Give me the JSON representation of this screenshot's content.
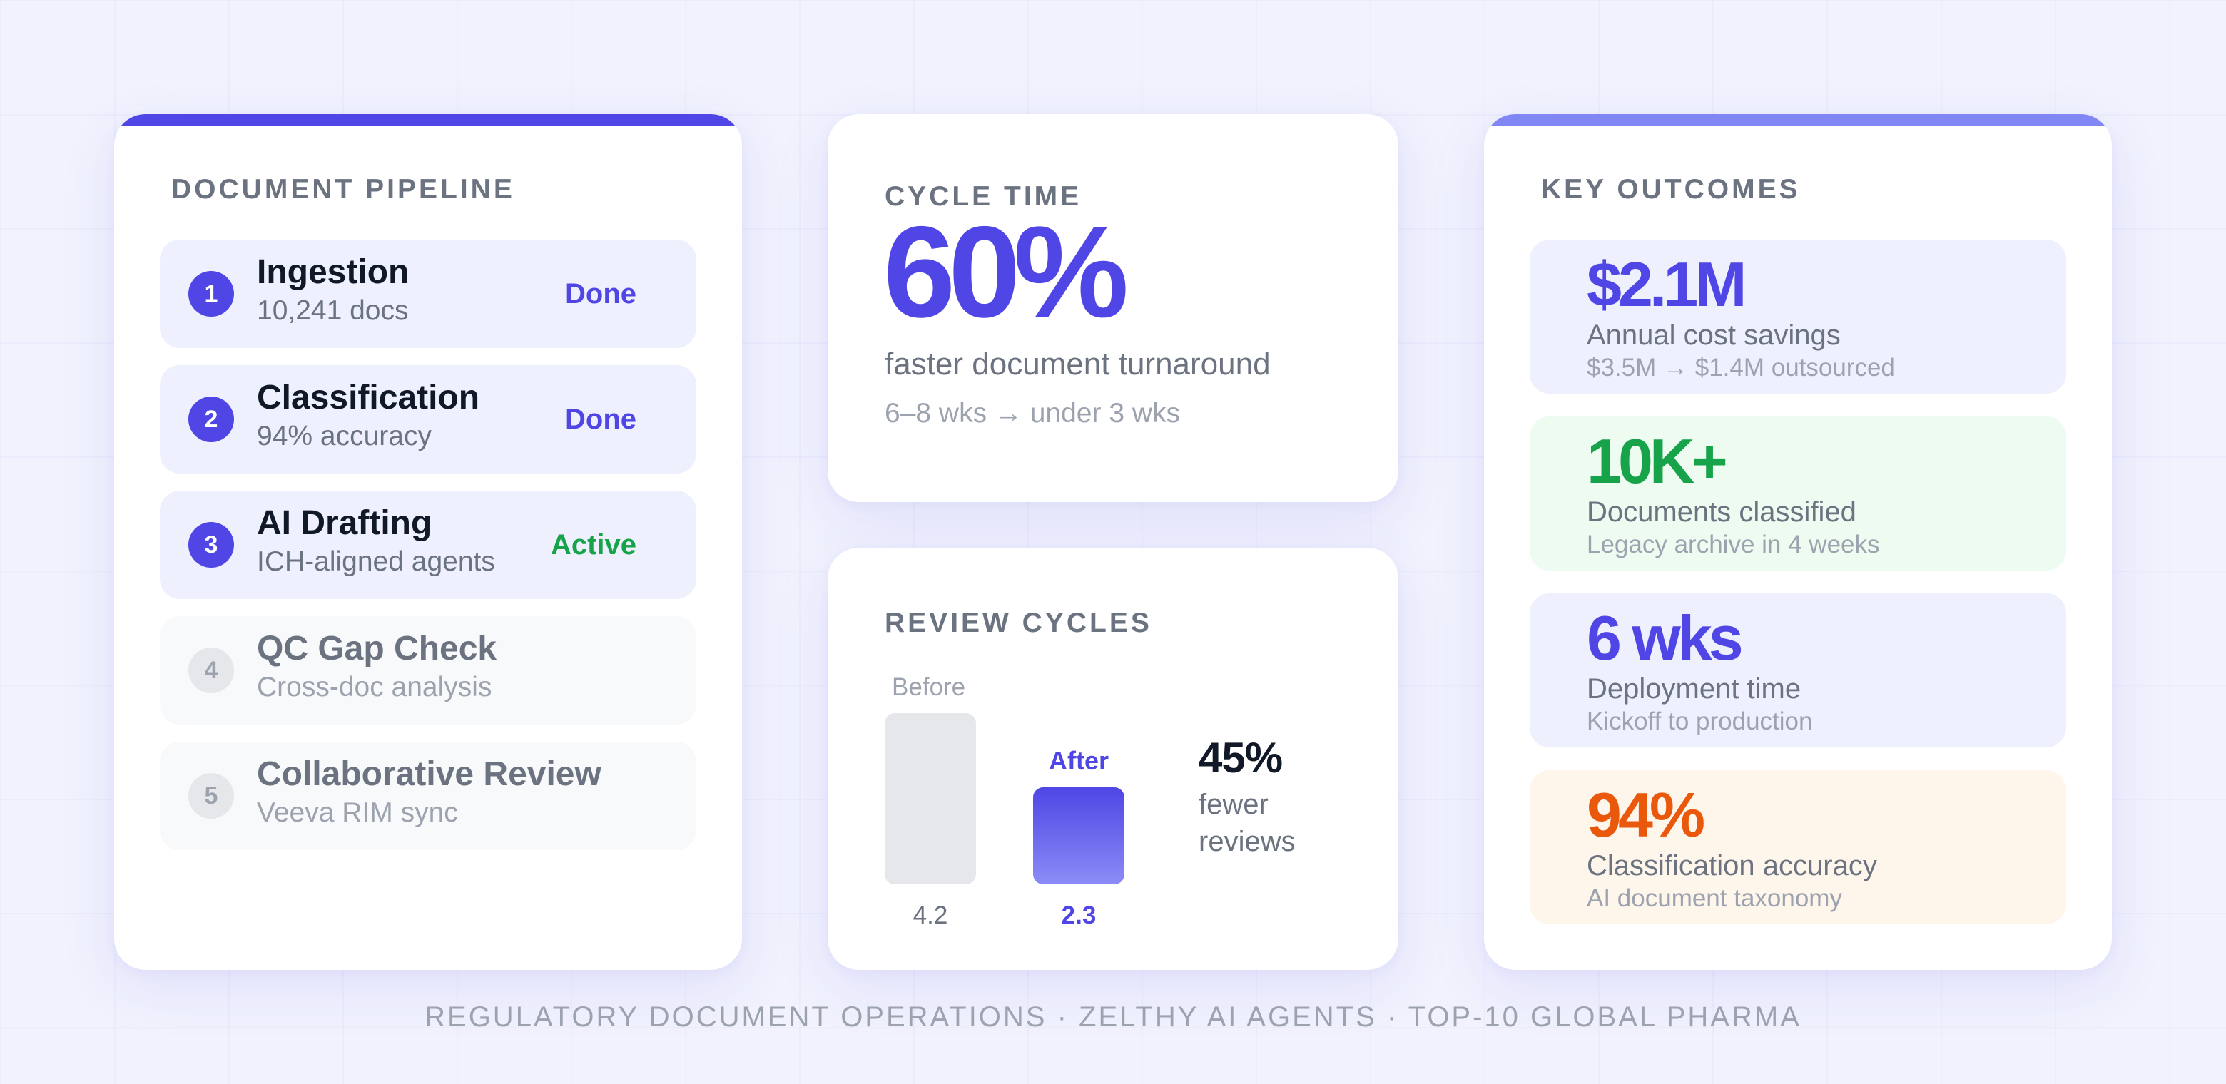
{
  "pipeline": {
    "title": "DOCUMENT PIPELINE",
    "steps": [
      {
        "num": "1",
        "name": "Ingestion",
        "sub": "10,241 docs",
        "status": "Done",
        "status_color": "#4f46e5"
      },
      {
        "num": "2",
        "name": "Classification",
        "sub": "94% accuracy",
        "status": "Done",
        "status_color": "#4f46e5"
      },
      {
        "num": "3",
        "name": "AI Drafting",
        "sub": "ICH-aligned agents",
        "status": "Active",
        "status_color": "#16a34a"
      },
      {
        "num": "4",
        "name": "QC Gap Check",
        "sub": "Cross-doc analysis"
      },
      {
        "num": "5",
        "name": "Collaborative Review",
        "sub": "Veeva RIM sync"
      }
    ]
  },
  "cycle_time": {
    "title": "CYCLE TIME",
    "value": "60%",
    "description": "faster document turnaround",
    "detail": "6–8 wks → under 3 wks"
  },
  "review_cycles": {
    "title": "REVIEW CYCLES",
    "before": {
      "label": "Before",
      "value": "4.2"
    },
    "after": {
      "label": "After",
      "value": "2.3"
    },
    "reduction": "45%",
    "reduction_text": "fewer reviews"
  },
  "outcomes": {
    "title": "KEY OUTCOMES",
    "items": [
      {
        "value": "$2.1M",
        "label": "Annual cost savings",
        "sub": "$3.5M → $1.4M outsourced",
        "color": "#4f46e5",
        "bg": "#eef0fd"
      },
      {
        "value": "10K+",
        "label": "Documents classified",
        "sub": "Legacy archive in 4 weeks",
        "color": "#16a34a",
        "bg": "#edfbf1"
      },
      {
        "value": "6 wks",
        "label": "Deployment time",
        "sub": "Kickoff to production",
        "color": "#4f46e5",
        "bg": "#eef0fd"
      },
      {
        "value": "94%",
        "label": "Classification accuracy",
        "sub": "AI document taxonomy",
        "color": "#ea580c",
        "bg": "#fef5eb"
      }
    ]
  },
  "footer": "REGULATORY DOCUMENT OPERATIONS · ZELTHY AI AGENTS · TOP-10 GLOBAL PHARMA",
  "colors": {
    "primary": "#4f46e5",
    "primary_light": "#8186f5",
    "success": "#16a34a",
    "warning": "#ea580c"
  }
}
